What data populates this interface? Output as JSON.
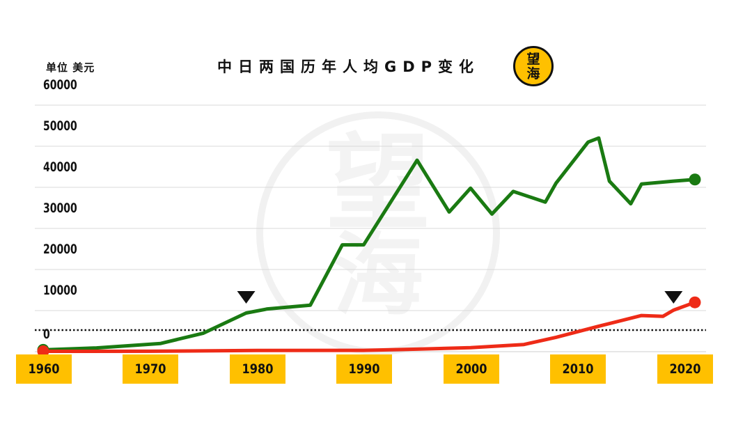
{
  "unit_label": "单位 美元",
  "title": "中日两国历年人均GDP变化",
  "logo": {
    "line1": "望",
    "line2": "海"
  },
  "watermark": {
    "line1": "望",
    "line2": "海"
  },
  "colors": {
    "japan": "#1a7a12",
    "china": "#ee2b17",
    "accent": "#ffc000",
    "grid": "#d9d9d9"
  },
  "chart_data": {
    "type": "line",
    "title": "中日两国历年人均GDP变化",
    "ylabel": "单位 美元",
    "ylim": [
      0,
      60000
    ],
    "yticks": [
      "0",
      "10000",
      "20000",
      "30000",
      "40000",
      "50000",
      "60000"
    ],
    "xlim": [
      1960,
      2021
    ],
    "xticks": [
      "1960",
      "1970",
      "1980",
      "1990",
      "2000",
      "2010",
      "2020"
    ],
    "reference_line": {
      "y": 10000,
      "style": "dotted"
    },
    "markers": [
      {
        "x": 1979,
        "shape": "triangle-down"
      },
      {
        "x": 2019,
        "shape": "triangle-down"
      }
    ],
    "grid": true,
    "series": [
      {
        "color": "#1a7a12",
        "x": [
          1960,
          1965,
          1971,
          1975,
          1979,
          1981,
          1985,
          1988,
          1990,
          1995,
          1998,
          2000,
          2002,
          2004,
          2007,
          2008,
          2011,
          2012,
          2013,
          2015,
          2016,
          2019,
          2021
        ],
        "y": [
          440,
          920,
          2000,
          4500,
          9400,
          10400,
          11300,
          26000,
          26000,
          46600,
          34000,
          39800,
          33500,
          39000,
          36400,
          41000,
          51000,
          52000,
          41500,
          36000,
          40800,
          41500,
          41900
        ]
      },
      {
        "color": "#ee2b17",
        "x": [
          1960,
          1970,
          1980,
          1990,
          1995,
          2000,
          2005,
          2008,
          2012,
          2016,
          2018,
          2019,
          2021
        ],
        "y": [
          90,
          110,
          310,
          320,
          610,
          960,
          1750,
          3500,
          6200,
          8800,
          8600,
          10100,
          12000
        ]
      }
    ]
  }
}
